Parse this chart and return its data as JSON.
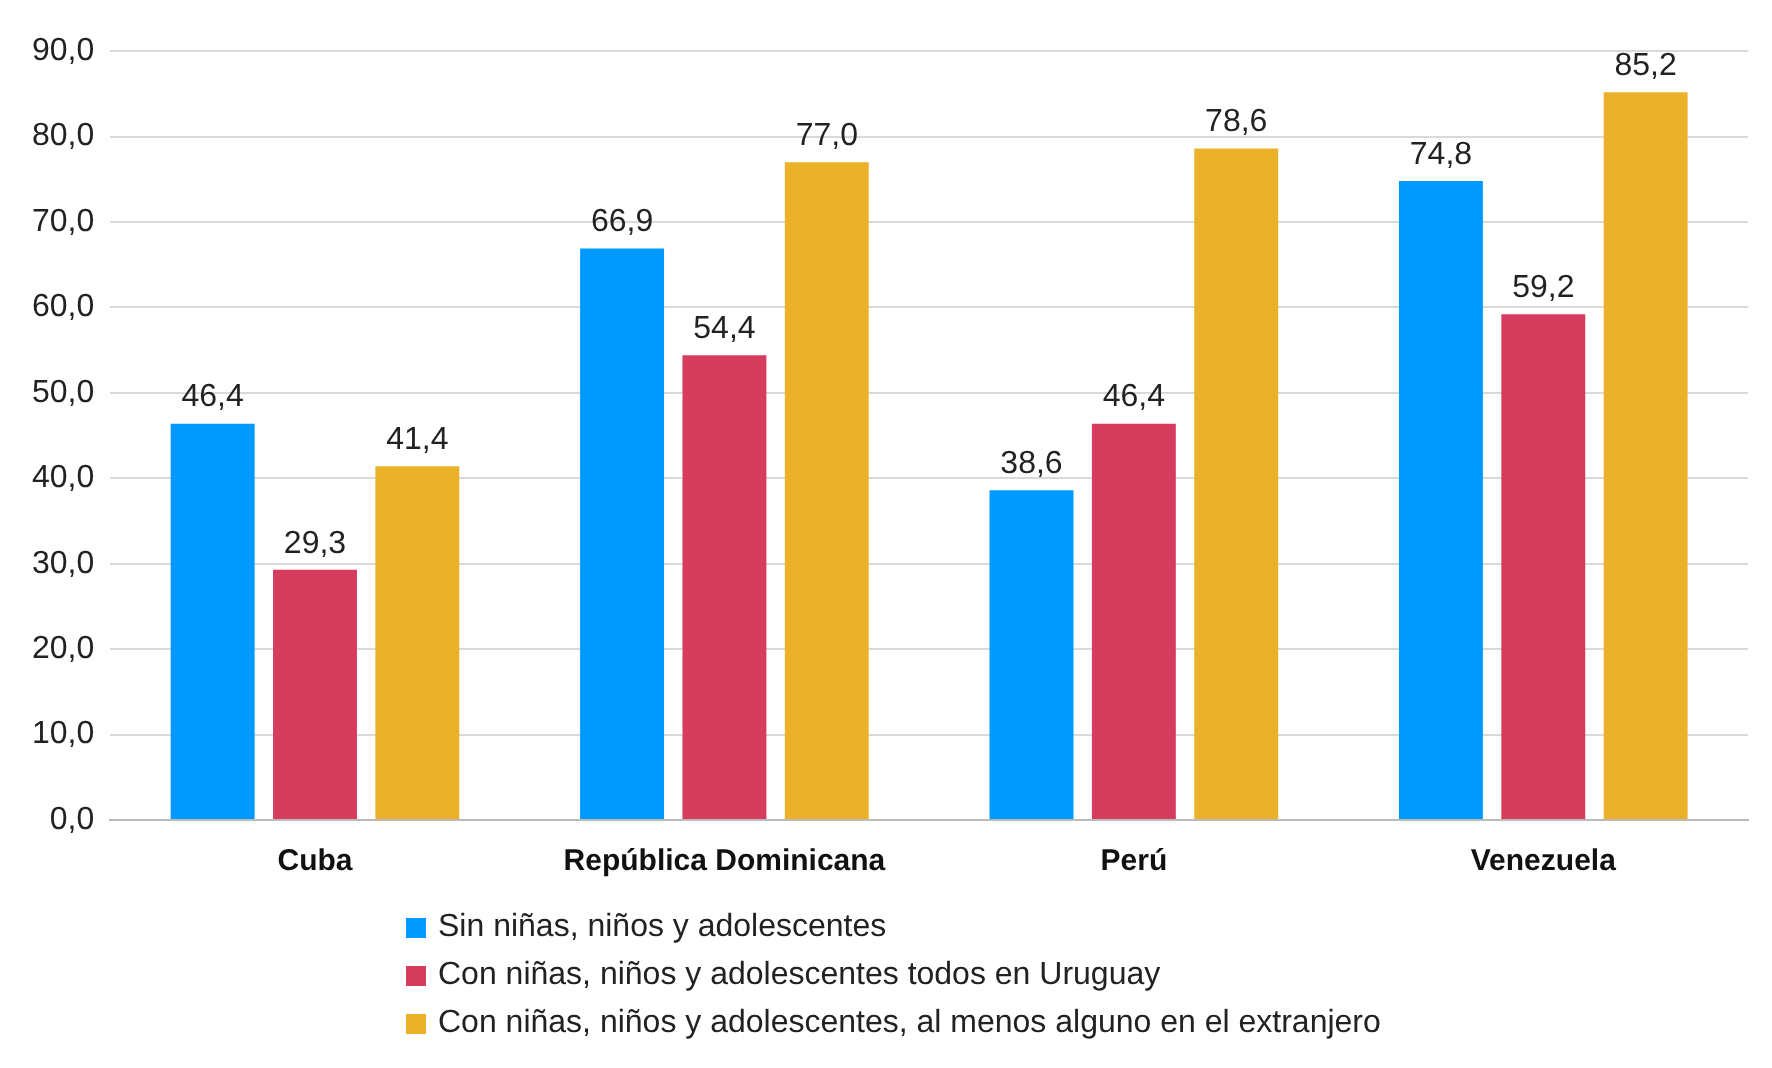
{
  "chart_data": {
    "type": "bar",
    "categories": [
      "Cuba",
      "República Dominicana",
      "Perú",
      "Venezuela"
    ],
    "series": [
      {
        "name": "Sin niñas, niños y adolescentes",
        "color": "#0099ff",
        "values": [
          46.4,
          66.9,
          38.6,
          74.8
        ],
        "value_labels": [
          "46,4",
          "66,9",
          "38,6",
          "74,8"
        ]
      },
      {
        "name": "Con niñas, niños y adolescentes todos en Uruguay",
        "color": "#d63c5e",
        "values": [
          29.3,
          54.4,
          46.4,
          59.2
        ],
        "value_labels": [
          "29,3",
          "54,4",
          "46,4",
          "59,2"
        ]
      },
      {
        "name": "Con niñas, niños y adolescentes, al menos alguno en el extranjero",
        "color": "#ebb12b",
        "values": [
          41.4,
          77.0,
          78.6,
          85.2
        ],
        "value_labels": [
          "41,4",
          "77,0",
          "78,6",
          "85,2"
        ]
      }
    ],
    "ylim": [
      0,
      90
    ],
    "yticks": [
      {
        "value": 0,
        "label": "0,0"
      },
      {
        "value": 10,
        "label": "10,0"
      },
      {
        "value": 20,
        "label": "20,0"
      },
      {
        "value": 30,
        "label": "30,0"
      },
      {
        "value": 40,
        "label": "40,0"
      },
      {
        "value": 50,
        "label": "50,0"
      },
      {
        "value": 60,
        "label": "60,0"
      },
      {
        "value": 70,
        "label": "70,0"
      },
      {
        "value": 80,
        "label": "80,0"
      },
      {
        "value": 90,
        "label": "90,0"
      }
    ],
    "grid": "y",
    "legend": "bottom"
  }
}
